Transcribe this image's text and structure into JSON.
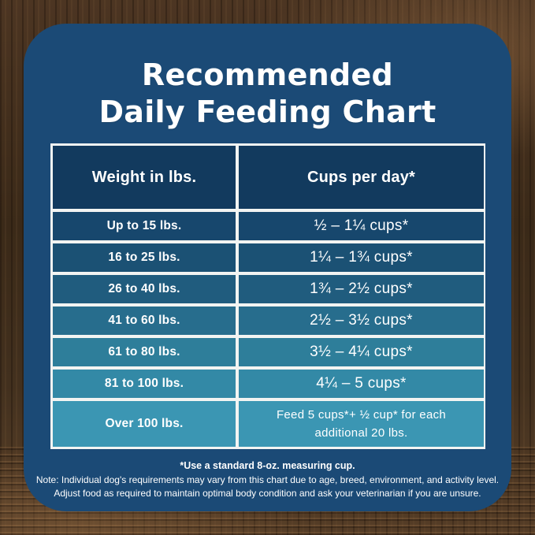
{
  "title": {
    "line1": "Recommended",
    "line2": "Daily Feeding Chart"
  },
  "table": {
    "headers": [
      "Weight in lbs.",
      "Cups per day*"
    ],
    "rows": [
      {
        "weight": "Up to 15 lbs.",
        "cups": "½ – 1¼ cups*",
        "bg": "#17476d"
      },
      {
        "weight": "16 to 25 lbs.",
        "cups": "1¼ – 1¾ cups*",
        "bg": "#1b5174"
      },
      {
        "weight": "26 to 40 lbs.",
        "cups": "1¾ – 2½ cups*",
        "bg": "#205c7e"
      },
      {
        "weight": "41 to 60 lbs.",
        "cups": "2½ – 3½ cups*",
        "bg": "#276d8d"
      },
      {
        "weight": "61 to 80 lbs.",
        "cups": "3½ – 4¼ cups*",
        "bg": "#2e7e9a"
      },
      {
        "weight": "81 to 100 lbs.",
        "cups": "4¼ – 5 cups*",
        "bg": "#3389a6"
      },
      {
        "weight": "Over 100 lbs.",
        "cups": "Feed 5 cups*+ ½ cup* for each additional 20 lbs.",
        "bg": "#3b96b3"
      }
    ]
  },
  "footnotes": {
    "cup": "*Use a standard 8-oz. measuring cup.",
    "note1": "Note: Individual dog's requirements may vary from this chart due to age, breed, environment, and activity level.",
    "note2": "Adjust food as required to maintain optimal body condition and ask your veterinarian if you are unsure."
  },
  "colors": {
    "panel_bg": "#1b4a76",
    "header_bg": "#123a5e",
    "grid_line": "#f2f4f2",
    "text": "#ffffff"
  },
  "chart_data": {
    "type": "table",
    "title": "Recommended Daily Feeding Chart",
    "columns": [
      "Weight in lbs.",
      "Cups per day*"
    ],
    "rows": [
      [
        "Up to 15 lbs.",
        "½ – 1¼ cups*"
      ],
      [
        "16 to 25 lbs.",
        "1¼ – 1¾ cups*"
      ],
      [
        "26 to 40 lbs.",
        "1¾ – 2½ cups*"
      ],
      [
        "41 to 60 lbs.",
        "2½ – 3½ cups*"
      ],
      [
        "61 to 80 lbs.",
        "3½ – 4¼ cups*"
      ],
      [
        "81 to 100 lbs.",
        "4¼ – 5 cups*"
      ],
      [
        "Over 100 lbs.",
        "Feed 5 cups*+ ½ cup* for each additional 20 lbs."
      ]
    ],
    "weight_ranges_lbs": [
      [
        0,
        15
      ],
      [
        16,
        25
      ],
      [
        26,
        40
      ],
      [
        41,
        60
      ],
      [
        61,
        80
      ],
      [
        81,
        100
      ],
      [
        100,
        null
      ]
    ],
    "cups_per_day_min_max": [
      [
        0.5,
        1.25
      ],
      [
        1.25,
        1.75
      ],
      [
        1.75,
        2.5
      ],
      [
        2.5,
        3.5
      ],
      [
        3.5,
        4.25
      ],
      [
        4.25,
        5
      ],
      [
        5,
        null
      ]
    ],
    "over_100_rule": "Feed 5 cups plus ½ cup for each additional 20 lbs.",
    "footnote": "*Use a standard 8-oz. measuring cup."
  }
}
